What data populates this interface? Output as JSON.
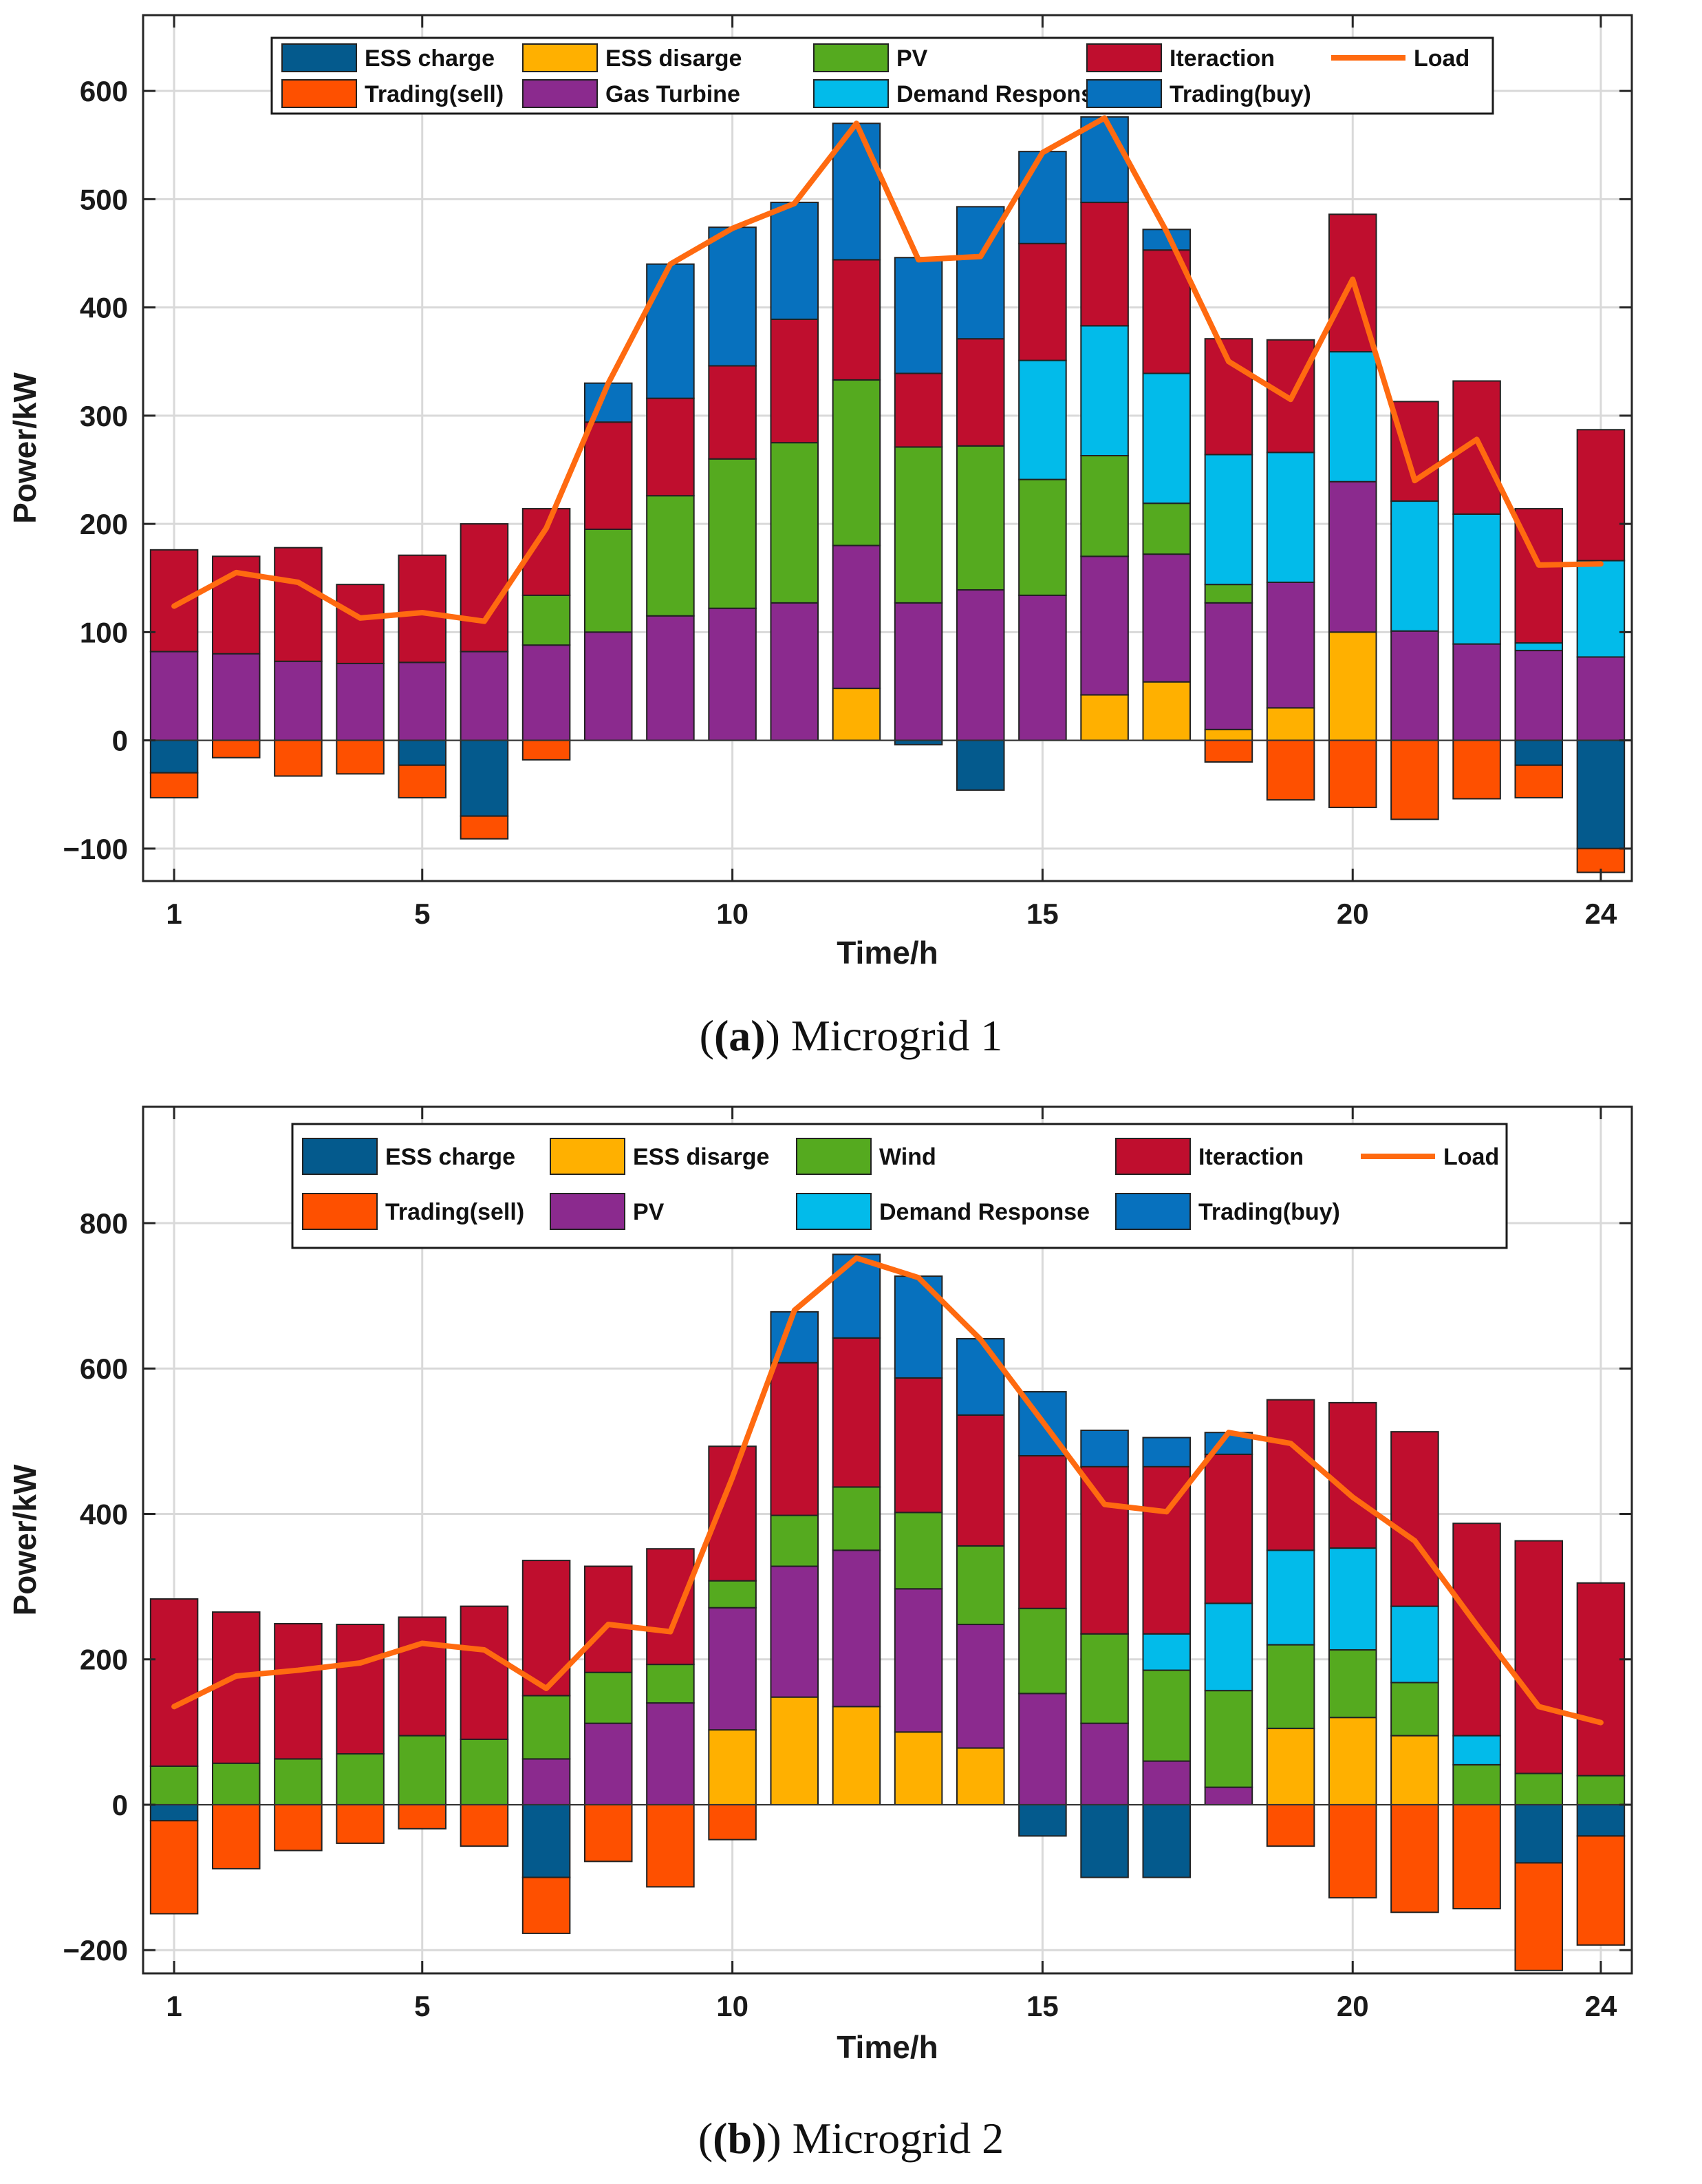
{
  "chart_data": [
    {
      "type": "bar",
      "stacked": true,
      "title": "",
      "caption_label": "(a)",
      "caption_text": "Microgrid 1",
      "xlabel": "Time/h",
      "ylabel": "Power/kW",
      "xlim": [
        0.5,
        24.5
      ],
      "ylim": [
        -130,
        670
      ],
      "xticks": [
        1,
        5,
        10,
        15,
        20,
        24
      ],
      "yticks": [
        -100,
        0,
        100,
        200,
        300,
        400,
        500,
        600
      ],
      "ytick_labels": [
        "−100",
        "0",
        "100",
        "200",
        "300",
        "400",
        "500",
        "600"
      ],
      "grid": true,
      "legend_location": "top",
      "hours": [
        1,
        2,
        3,
        4,
        5,
        6,
        7,
        8,
        9,
        10,
        11,
        12,
        13,
        14,
        15,
        16,
        17,
        18,
        19,
        20,
        21,
        22,
        23,
        24
      ],
      "positive_series": [
        {
          "name": "ESS disarge",
          "color": "#FFB000",
          "values": [
            0,
            0,
            0,
            0,
            0,
            0,
            0,
            0,
            0,
            0,
            0,
            48,
            0,
            0,
            0,
            42,
            54,
            10,
            30,
            100,
            0,
            0,
            0,
            0
          ]
        },
        {
          "name": "Gas Turbine",
          "color": "#8B2A8E",
          "values": [
            82,
            80,
            73,
            71,
            72,
            82,
            88,
            100,
            115,
            122,
            127,
            132,
            127,
            139,
            134,
            128,
            118,
            117,
            116,
            139,
            101,
            89,
            83,
            77
          ]
        },
        {
          "name": "PV",
          "color": "#55AA1F",
          "values": [
            0,
            0,
            0,
            0,
            0,
            0,
            46,
            95,
            111,
            138,
            148,
            153,
            144,
            133,
            107,
            93,
            47,
            17,
            0,
            0,
            0,
            0,
            0,
            0
          ]
        },
        {
          "name": "Demand Response",
          "color": "#02BBEA",
          "values": [
            0,
            0,
            0,
            0,
            0,
            0,
            0,
            0,
            0,
            0,
            0,
            0,
            0,
            0,
            110,
            120,
            120,
            120,
            120,
            120,
            120,
            120,
            7,
            89
          ]
        },
        {
          "name": "Iteraction",
          "color": "#BF0E2E",
          "values": [
            94,
            90,
            105,
            73,
            99,
            118,
            80,
            99,
            90,
            86,
            114,
            111,
            68,
            99,
            108,
            114,
            114,
            107,
            104,
            127,
            92,
            123,
            124,
            121
          ]
        },
        {
          "name": "Trading(buy)",
          "color": "#0771BE",
          "values": [
            0,
            0,
            0,
            0,
            0,
            0,
            0,
            36,
            124,
            128,
            108,
            126,
            107,
            122,
            85,
            79,
            19,
            0,
            0,
            0,
            0,
            0,
            0,
            0
          ]
        }
      ],
      "negative_series": [
        {
          "name": "ESS charge",
          "color": "#045A8D",
          "values": [
            -30,
            0,
            0,
            0,
            -23,
            -70,
            0,
            0,
            0,
            0,
            0,
            0,
            -4,
            -46,
            0,
            0,
            0,
            0,
            0,
            0,
            0,
            0,
            -23,
            -100
          ]
        },
        {
          "name": "Trading(sell)",
          "color": "#FE5000",
          "values": [
            -23,
            -16,
            -33,
            -31,
            -30,
            -21,
            -18,
            0,
            0,
            0,
            0,
            0,
            0,
            0,
            0,
            0,
            0,
            -20,
            -55,
            -62,
            -73,
            -54,
            -30,
            -22
          ]
        }
      ],
      "load_series": {
        "name": "Load",
        "color": "#FF6A10",
        "values": [
          124,
          155,
          146,
          113,
          118,
          110,
          196,
          330,
          440,
          473,
          496,
          570,
          444,
          447,
          543,
          575,
          470,
          350,
          315,
          426,
          240,
          278,
          162,
          163
        ]
      },
      "legend_items": [
        {
          "name": "ESS charge",
          "color": "#045A8D",
          "kind": "bar"
        },
        {
          "name": "ESS disarge",
          "color": "#FFB000",
          "kind": "bar"
        },
        {
          "name": "PV",
          "color": "#55AA1F",
          "kind": "bar"
        },
        {
          "name": "Iteraction",
          "color": "#BF0E2E",
          "kind": "bar"
        },
        {
          "name": "Load",
          "color": "#FF6A10",
          "kind": "line"
        },
        {
          "name": "Trading(sell)",
          "color": "#FE5000",
          "kind": "bar"
        },
        {
          "name": "Gas Turbine",
          "color": "#8B2A8E",
          "kind": "bar"
        },
        {
          "name": "Demand Response",
          "color": "#02BBEA",
          "kind": "bar"
        },
        {
          "name": "Trading(buy)",
          "color": "#0771BE",
          "kind": "bar"
        }
      ]
    },
    {
      "type": "bar",
      "stacked": true,
      "title": "",
      "caption_label": "(b)",
      "caption_text": "Microgrid 2",
      "xlabel": "Time/h",
      "ylabel": "Power/kW",
      "xlim": [
        0.5,
        24.5
      ],
      "ylim": [
        -232,
        960
      ],
      "xticks": [
        1,
        5,
        10,
        15,
        20,
        24
      ],
      "yticks": [
        -200,
        0,
        200,
        400,
        600,
        800
      ],
      "ytick_labels": [
        "−200",
        "0",
        "200",
        "400",
        "600",
        "800"
      ],
      "grid": true,
      "legend_location": "top",
      "hours": [
        1,
        2,
        3,
        4,
        5,
        6,
        7,
        8,
        9,
        10,
        11,
        12,
        13,
        14,
        15,
        16,
        17,
        18,
        19,
        20,
        21,
        22,
        23,
        24
      ],
      "positive_series": [
        {
          "name": "ESS disarge",
          "color": "#FFB000",
          "values": [
            0,
            0,
            0,
            0,
            0,
            0,
            0,
            0,
            0,
            103,
            148,
            135,
            100,
            78,
            0,
            0,
            0,
            0,
            105,
            120,
            95,
            0,
            0,
            0
          ]
        },
        {
          "name": "PV",
          "color": "#8B2A8E",
          "values": [
            0,
            0,
            0,
            0,
            0,
            0,
            63,
            112,
            140,
            168,
            180,
            215,
            197,
            170,
            153,
            112,
            60,
            24,
            0,
            0,
            0,
            0,
            0,
            0
          ]
        },
        {
          "name": "Wind",
          "color": "#55AA1F",
          "values": [
            53,
            57,
            63,
            70,
            95,
            90,
            87,
            70,
            53,
            37,
            70,
            87,
            105,
            108,
            117,
            123,
            125,
            133,
            115,
            93,
            73,
            55,
            43,
            40
          ]
        },
        {
          "name": "Demand Response",
          "color": "#02BBEA",
          "values": [
            0,
            0,
            0,
            0,
            0,
            0,
            0,
            0,
            0,
            0,
            0,
            0,
            0,
            0,
            0,
            0,
            50,
            120,
            130,
            140,
            105,
            40,
            0,
            0
          ]
        },
        {
          "name": "Iteraction",
          "color": "#BF0E2E",
          "values": [
            230,
            208,
            186,
            178,
            163,
            183,
            186,
            146,
            159,
            185,
            210,
            205,
            185,
            180,
            210,
            230,
            230,
            205,
            207,
            200,
            240,
            292,
            320,
            265
          ]
        },
        {
          "name": "Trading(buy)",
          "color": "#0771BE",
          "values": [
            0,
            0,
            0,
            0,
            0,
            0,
            0,
            0,
            0,
            0,
            70,
            115,
            140,
            105,
            88,
            50,
            40,
            30,
            0,
            0,
            0,
            0,
            0,
            0
          ]
        }
      ],
      "negative_series": [
        {
          "name": "ESS charge",
          "color": "#045A8D",
          "values": [
            -22,
            0,
            0,
            0,
            0,
            0,
            -100,
            0,
            0,
            0,
            0,
            0,
            0,
            0,
            -43,
            -100,
            -100,
            0,
            0,
            0,
            0,
            0,
            -80,
            -43
          ]
        },
        {
          "name": "Trading(sell)",
          "color": "#FE5000",
          "values": [
            -128,
            -88,
            -63,
            -53,
            -33,
            -57,
            -77,
            -78,
            -113,
            -48,
            0,
            0,
            0,
            0,
            0,
            0,
            0,
            0,
            -57,
            -128,
            -148,
            -143,
            -148,
            -150
          ]
        }
      ],
      "load_series": {
        "name": "Load",
        "color": "#FF6A10",
        "values": [
          135,
          177,
          185,
          195,
          222,
          213,
          160,
          248,
          238,
          450,
          680,
          752,
          725,
          640,
          527,
          413,
          403,
          512,
          497,
          423,
          363,
          247,
          135,
          113
        ]
      },
      "legend_items": [
        {
          "name": "ESS charge",
          "color": "#045A8D",
          "kind": "bar"
        },
        {
          "name": "ESS disarge",
          "color": "#FFB000",
          "kind": "bar"
        },
        {
          "name": "Wind",
          "color": "#55AA1F",
          "kind": "bar"
        },
        {
          "name": "Iteraction",
          "color": "#BF0E2E",
          "kind": "bar"
        },
        {
          "name": "Load",
          "color": "#FF6A10",
          "kind": "line"
        },
        {
          "name": "Trading(sell)",
          "color": "#FE5000",
          "kind": "bar"
        },
        {
          "name": "PV",
          "color": "#8B2A8E",
          "kind": "bar"
        },
        {
          "name": "Demand Response",
          "color": "#02BBEA",
          "kind": "bar"
        },
        {
          "name": "Trading(buy)",
          "color": "#0771BE",
          "kind": "bar"
        }
      ]
    }
  ]
}
